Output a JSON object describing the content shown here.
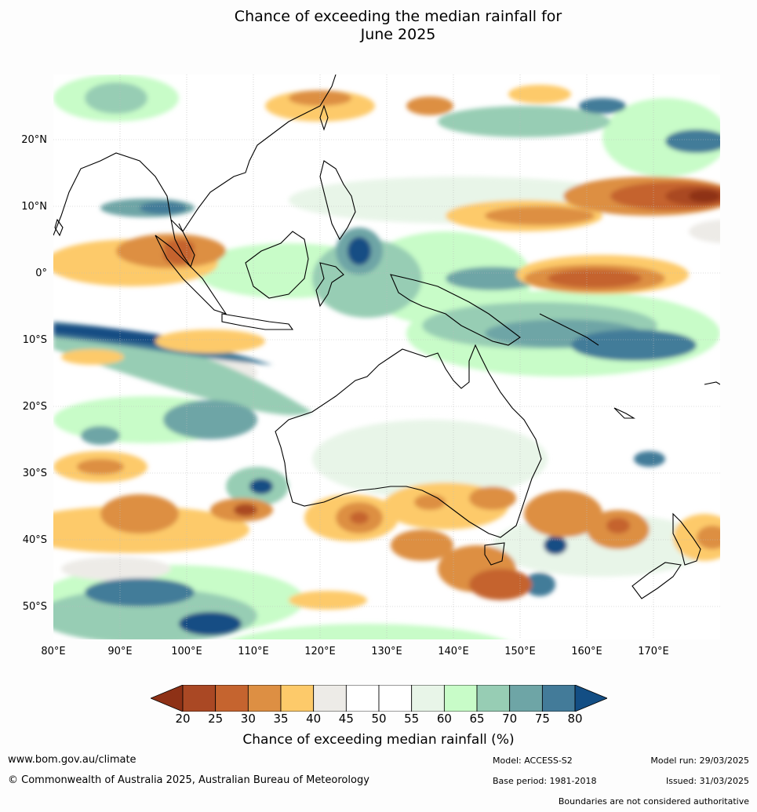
{
  "title": {
    "line1": "Chance of exceeding the median rainfall for",
    "line2": "June 2025"
  },
  "map": {
    "lon_range": [
      80,
      180
    ],
    "lat_range": [
      -55,
      30
    ],
    "lat_labels": [
      "20°N",
      "10°N",
      "0°",
      "10°S",
      "20°S",
      "30°S",
      "40°S",
      "50°S"
    ],
    "lon_labels": [
      "80°E",
      "90°E",
      "100°E",
      "110°E",
      "120°E",
      "130°E",
      "140°E",
      "150°E",
      "160°E",
      "170°E"
    ]
  },
  "colorbar": {
    "ticks": [
      "20",
      "25",
      "30",
      "35",
      "40",
      "45",
      "50",
      "55",
      "60",
      "65",
      "70",
      "75",
      "80"
    ],
    "colors": [
      "#8e3116",
      "#aa4824",
      "#c5642f",
      "#dd8f43",
      "#fdca6a",
      "#edebe7",
      "#ffffff",
      "#ffffff",
      "#e8f5e8",
      "#c8fcc8",
      "#97cdb4",
      "#6ea5a6",
      "#437b99",
      "#134e84"
    ],
    "label": "Chance of exceeding median rainfall (%)"
  },
  "footer": {
    "website": "www.bom.gov.au/climate",
    "copyright": "© Commonwealth of Australia 2025, Australian Bureau of Meteorology",
    "model": "Model: ACCESS-S2",
    "base_period": "Base period: 1981-2018",
    "model_run": "Model run: 29/03/2025",
    "issued": "Issued: 31/03/2025",
    "disclaimer": "Boundaries are not considered authoritative"
  }
}
